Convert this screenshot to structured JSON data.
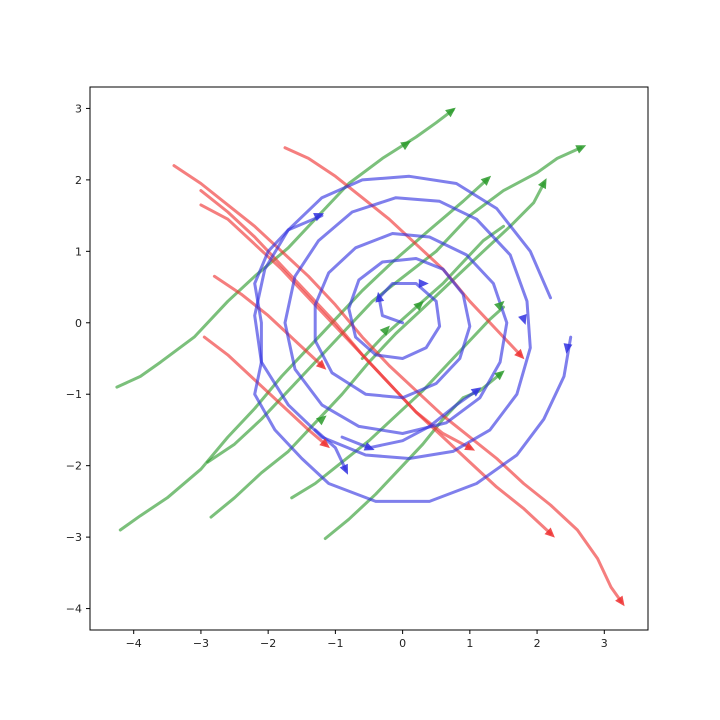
{
  "chart_data": {
    "type": "line",
    "title": "",
    "xlabel": "",
    "ylabel": "",
    "xlim": [
      -4.65,
      3.65
    ],
    "ylim": [
      -4.3,
      3.3
    ],
    "grid": false,
    "legend": "none",
    "xticks": [
      -4,
      -3,
      -2,
      -1,
      0,
      1,
      2,
      3
    ],
    "yticks": [
      3,
      2,
      1,
      0,
      -1,
      -2,
      -3,
      -4
    ],
    "xtick_labels": [
      "−4",
      "−3",
      "−2",
      "−1",
      "0",
      "1",
      "2",
      "3"
    ],
    "ytick_labels": [
      "3",
      "2",
      "1",
      "0",
      "−1",
      "−2",
      "−3",
      "−4"
    ],
    "colors": {
      "green": "#2a9a2a",
      "red": "#ef2f2f",
      "blue": "#3030e0"
    },
    "series": [
      {
        "color": "green",
        "points": [
          [
            -4.25,
            -0.9
          ],
          [
            -3.9,
            -0.75
          ],
          [
            -3.6,
            -0.55
          ],
          [
            -3.1,
            -0.2
          ],
          [
            -2.6,
            0.3
          ],
          [
            -2.2,
            0.65
          ],
          [
            -1.7,
            1.05
          ],
          [
            -1.2,
            1.55
          ],
          [
            -0.8,
            1.95
          ],
          [
            -0.3,
            2.3
          ],
          [
            0.2,
            2.6
          ],
          [
            0.5,
            2.8
          ],
          [
            0.75,
            2.98
          ]
        ],
        "arrows": [
          [
            0.05,
            2.5
          ],
          [
            0.72,
            2.96
          ]
        ]
      },
      {
        "color": "green",
        "points": [
          [
            -4.2,
            -2.9
          ],
          [
            -3.9,
            -2.7
          ],
          [
            -3.5,
            -2.45
          ],
          [
            -3.0,
            -2.05
          ],
          [
            -2.6,
            -1.6
          ],
          [
            -2.2,
            -1.2
          ],
          [
            -1.8,
            -0.75
          ],
          [
            -1.4,
            -0.35
          ],
          [
            -1.0,
            0.05
          ],
          [
            -0.6,
            0.45
          ],
          [
            -0.15,
            0.85
          ],
          [
            0.4,
            1.3
          ],
          [
            0.9,
            1.7
          ],
          [
            1.25,
            2.0
          ]
        ],
        "arrows": [
          [
            1.25,
            2.0
          ]
        ]
      },
      {
        "color": "green",
        "points": [
          [
            -2.9,
            -1.95
          ],
          [
            -2.5,
            -1.7
          ],
          [
            -2.1,
            -1.35
          ],
          [
            -1.7,
            -0.95
          ],
          [
            -1.3,
            -0.55
          ],
          [
            -0.9,
            -0.15
          ],
          [
            -0.45,
            0.3
          ],
          [
            -0.05,
            0.6
          ],
          [
            0.5,
            1.0
          ],
          [
            1.0,
            1.5
          ],
          [
            1.5,
            1.85
          ],
          [
            2.0,
            2.1
          ],
          [
            2.3,
            2.3
          ],
          [
            2.65,
            2.45
          ]
        ],
        "arrows": [
          [
            2.65,
            2.45
          ]
        ]
      },
      {
        "color": "green",
        "points": [
          [
            -2.85,
            -2.72
          ],
          [
            -2.5,
            -2.45
          ],
          [
            -2.1,
            -2.1
          ],
          [
            -1.7,
            -1.8
          ],
          [
            -1.3,
            -1.4
          ],
          [
            -0.9,
            -1.0
          ],
          [
            -0.5,
            -0.55
          ],
          [
            -0.1,
            -0.15
          ],
          [
            0.3,
            0.2
          ],
          [
            0.75,
            0.6
          ],
          [
            1.2,
            1.0
          ],
          [
            1.6,
            1.35
          ],
          [
            1.95,
            1.68
          ],
          [
            2.1,
            1.95
          ]
        ],
        "arrows": [
          [
            2.1,
            1.95
          ]
        ]
      },
      {
        "color": "green",
        "points": [
          [
            -1.65,
            -2.45
          ],
          [
            -1.3,
            -2.25
          ],
          [
            -0.9,
            -1.95
          ],
          [
            -0.5,
            -1.65
          ],
          [
            -0.1,
            -1.3
          ],
          [
            0.3,
            -0.95
          ],
          [
            0.65,
            -0.6
          ],
          [
            1.0,
            -0.25
          ],
          [
            1.3,
            0.05
          ],
          [
            1.5,
            0.22
          ]
        ],
        "arrows": [
          [
            -1.2,
            -1.35
          ],
          [
            1.45,
            0.25
          ]
        ]
      },
      {
        "color": "green",
        "points": [
          [
            -1.15,
            -3.02
          ],
          [
            -0.8,
            -2.75
          ],
          [
            -0.4,
            -2.4
          ],
          [
            0.0,
            -2.0
          ],
          [
            0.3,
            -1.7
          ],
          [
            0.6,
            -1.35
          ],
          [
            0.9,
            -1.05
          ],
          [
            1.15,
            -0.95
          ],
          [
            1.45,
            -0.72
          ]
        ],
        "arrows": [
          [
            1.45,
            -0.72
          ]
        ]
      },
      {
        "color": "green",
        "points": [
          [
            -0.6,
            -0.5
          ],
          [
            -0.3,
            -0.2
          ],
          [
            0.0,
            0.05
          ],
          [
            0.3,
            0.3
          ],
          [
            0.6,
            0.55
          ],
          [
            0.9,
            0.85
          ],
          [
            1.2,
            1.15
          ],
          [
            1.5,
            1.35
          ]
        ],
        "arrows": [
          [
            -0.25,
            -0.1
          ],
          [
            0.25,
            0.25
          ]
        ]
      },
      {
        "color": "red",
        "points": [
          [
            -3.4,
            2.2
          ],
          [
            -3.0,
            1.95
          ],
          [
            -2.6,
            1.65
          ],
          [
            -2.2,
            1.35
          ],
          [
            -1.8,
            1.0
          ],
          [
            -1.4,
            0.65
          ],
          [
            -1.0,
            0.25
          ],
          [
            -0.6,
            -0.2
          ],
          [
            -0.2,
            -0.6
          ],
          [
            0.2,
            -0.95
          ],
          [
            0.6,
            -1.3
          ],
          [
            1.0,
            -1.6
          ],
          [
            1.4,
            -1.9
          ],
          [
            1.8,
            -2.25
          ],
          [
            2.2,
            -2.55
          ],
          [
            2.6,
            -2.9
          ],
          [
            2.9,
            -3.3
          ],
          [
            3.1,
            -3.7
          ],
          [
            3.25,
            -3.9
          ]
        ],
        "arrows": [
          [
            3.25,
            -3.9
          ]
        ]
      },
      {
        "color": "red",
        "points": [
          [
            -3.0,
            1.85
          ],
          [
            -2.6,
            1.55
          ],
          [
            -2.2,
            1.2
          ],
          [
            -1.8,
            0.8
          ],
          [
            -1.4,
            0.4
          ],
          [
            -1.0,
            0.0
          ],
          [
            -0.6,
            -0.45
          ],
          [
            -0.2,
            -0.85
          ],
          [
            0.2,
            -1.25
          ],
          [
            0.6,
            -1.6
          ],
          [
            1.0,
            -1.95
          ],
          [
            1.4,
            -2.3
          ],
          [
            1.8,
            -2.6
          ],
          [
            2.2,
            -2.95
          ]
        ],
        "arrows": [
          [
            2.2,
            -2.95
          ]
        ]
      },
      {
        "color": "red",
        "points": [
          [
            -3.0,
            1.65
          ],
          [
            -2.6,
            1.45
          ],
          [
            -2.2,
            1.1
          ],
          [
            -1.8,
            0.75
          ],
          [
            -1.4,
            0.35
          ],
          [
            -1.0,
            -0.05
          ],
          [
            -0.6,
            -0.45
          ],
          [
            -0.2,
            -0.85
          ],
          [
            0.2,
            -1.25
          ],
          [
            0.6,
            -1.55
          ],
          [
            1.0,
            -1.75
          ]
        ],
        "arrows": [
          [
            1.0,
            -1.75
          ]
        ]
      },
      {
        "color": "red",
        "points": [
          [
            -1.75,
            2.45
          ],
          [
            -1.4,
            2.3
          ],
          [
            -1.0,
            2.05
          ],
          [
            -0.6,
            1.75
          ],
          [
            -0.2,
            1.45
          ],
          [
            0.2,
            1.1
          ],
          [
            0.6,
            0.75
          ],
          [
            1.0,
            0.3
          ],
          [
            1.4,
            -0.1
          ],
          [
            1.75,
            -0.45
          ]
        ],
        "arrows": [
          [
            1.75,
            -0.45
          ]
        ]
      },
      {
        "color": "red",
        "points": [
          [
            -2.8,
            0.65
          ],
          [
            -2.4,
            0.4
          ],
          [
            -2.0,
            0.1
          ],
          [
            -1.6,
            -0.25
          ],
          [
            -1.2,
            -0.6
          ]
        ],
        "arrows": [
          [
            -1.2,
            -0.6
          ]
        ]
      },
      {
        "color": "red",
        "points": [
          [
            -2.95,
            -0.2
          ],
          [
            -2.6,
            -0.45
          ],
          [
            -2.2,
            -0.8
          ],
          [
            -1.8,
            -1.15
          ],
          [
            -1.4,
            -1.5
          ],
          [
            -1.15,
            -1.7
          ]
        ],
        "arrows": [
          [
            -1.15,
            -1.7
          ]
        ]
      },
      {
        "color": "blue",
        "points": [
          [
            0.0,
            0.0
          ],
          [
            -0.3,
            0.1
          ],
          [
            -0.35,
            0.35
          ],
          [
            -0.15,
            0.55
          ],
          [
            0.2,
            0.55
          ],
          [
            0.5,
            0.3
          ],
          [
            0.55,
            -0.05
          ],
          [
            0.35,
            -0.35
          ],
          [
            0.0,
            -0.5
          ],
          [
            -0.4,
            -0.45
          ],
          [
            -0.7,
            -0.2
          ],
          [
            -0.8,
            0.2
          ],
          [
            -0.65,
            0.6
          ],
          [
            -0.3,
            0.85
          ],
          [
            0.2,
            0.9
          ],
          [
            0.6,
            0.75
          ],
          [
            0.9,
            0.4
          ],
          [
            1.0,
            -0.05
          ],
          [
            0.85,
            -0.5
          ],
          [
            0.5,
            -0.85
          ],
          [
            0.0,
            -1.05
          ],
          [
            -0.55,
            -1.0
          ],
          [
            -1.05,
            -0.7
          ],
          [
            -1.3,
            -0.25
          ],
          [
            -1.3,
            0.25
          ],
          [
            -1.1,
            0.7
          ],
          [
            -0.7,
            1.05
          ],
          [
            -0.15,
            1.25
          ],
          [
            0.4,
            1.2
          ],
          [
            0.95,
            0.95
          ],
          [
            1.35,
            0.55
          ],
          [
            1.55,
            0.0
          ],
          [
            1.45,
            -0.55
          ],
          [
            1.15,
            -1.05
          ],
          [
            0.65,
            -1.4
          ],
          [
            0.0,
            -1.55
          ],
          [
            -0.65,
            -1.45
          ],
          [
            -1.2,
            -1.15
          ],
          [
            -1.6,
            -0.65
          ],
          [
            -1.75,
            0.0
          ],
          [
            -1.6,
            0.65
          ],
          [
            -1.25,
            1.15
          ],
          [
            -0.75,
            1.55
          ],
          [
            -0.1,
            1.75
          ],
          [
            0.55,
            1.7
          ],
          [
            1.1,
            1.45
          ],
          [
            1.6,
            0.95
          ],
          [
            1.85,
            0.3
          ],
          [
            1.9,
            -0.35
          ],
          [
            1.7,
            -1.0
          ],
          [
            1.3,
            -1.5
          ],
          [
            0.75,
            -1.8
          ],
          [
            0.1,
            -1.9
          ],
          [
            -0.55,
            -1.85
          ],
          [
            -1.2,
            -1.6
          ],
          [
            -1.7,
            -1.15
          ],
          [
            -2.1,
            -0.55
          ],
          [
            -2.2,
            0.1
          ],
          [
            -2.05,
            0.75
          ],
          [
            -1.7,
            1.3
          ],
          [
            -1.2,
            1.75
          ],
          [
            -0.6,
            2.0
          ],
          [
            0.1,
            2.05
          ],
          [
            0.8,
            1.95
          ],
          [
            1.4,
            1.6
          ],
          [
            1.9,
            1.0
          ],
          [
            2.2,
            0.35
          ]
        ],
        "arrows": [
          [
            0.3,
            0.55
          ],
          [
            -0.35,
            0.35
          ],
          [
            1.8,
            0.05
          ]
        ]
      },
      {
        "color": "blue",
        "points": [
          [
            2.5,
            -0.2
          ],
          [
            2.4,
            -0.75
          ],
          [
            2.1,
            -1.35
          ],
          [
            1.7,
            -1.85
          ],
          [
            1.1,
            -2.25
          ],
          [
            0.4,
            -2.5
          ],
          [
            -0.4,
            -2.5
          ],
          [
            -1.1,
            -2.25
          ],
          [
            -1.5,
            -1.9
          ],
          [
            -1.9,
            -1.5
          ],
          [
            -2.2,
            -1.0
          ],
          [
            -2.1,
            -0.55
          ],
          [
            -2.1,
            0.0
          ],
          [
            -2.2,
            0.55
          ],
          [
            -2.0,
            1.0
          ],
          [
            -1.7,
            1.3
          ],
          [
            -1.2,
            1.5
          ]
        ],
        "arrows": [
          [
            2.45,
            -0.35
          ],
          [
            -1.25,
            1.5
          ]
        ]
      },
      {
        "color": "blue",
        "points": [
          [
            -0.9,
            -1.6
          ],
          [
            -0.5,
            -1.75
          ],
          [
            0.0,
            -1.65
          ],
          [
            0.4,
            -1.45
          ],
          [
            0.8,
            -1.15
          ],
          [
            1.1,
            -0.95
          ]
        ],
        "arrows": [
          [
            -0.5,
            -1.75
          ],
          [
            1.1,
            -0.95
          ]
        ]
      },
      {
        "color": "blue",
        "points": [
          [
            -1.3,
            -1.5
          ],
          [
            -1.0,
            -1.75
          ],
          [
            -0.85,
            -2.05
          ]
        ],
        "arrows": [
          [
            -0.85,
            -2.05
          ]
        ]
      }
    ]
  }
}
